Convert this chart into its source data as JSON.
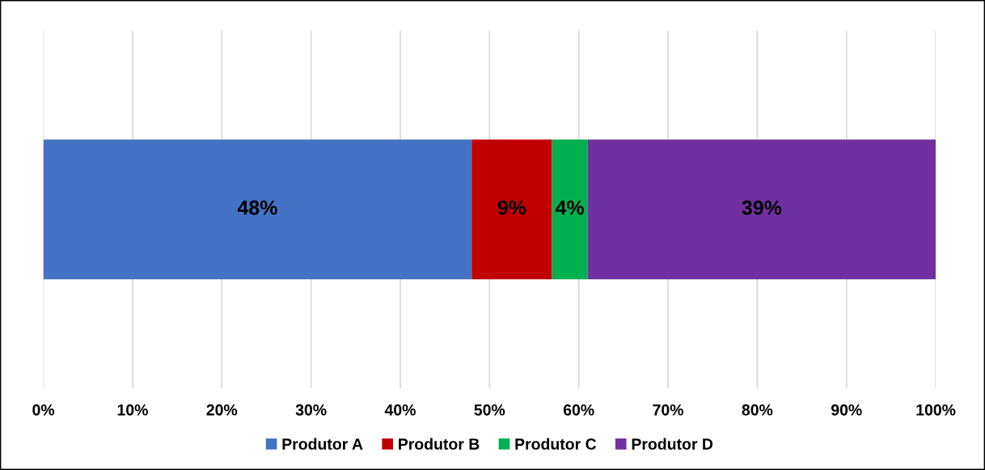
{
  "chart_data": {
    "type": "bar",
    "orientation": "horizontal",
    "stacked": true,
    "categories": [
      null
    ],
    "series": [
      {
        "name": "Produtor A",
        "color": "#4472c4",
        "values": [
          48
        ],
        "value_labels": [
          "48%"
        ]
      },
      {
        "name": "Produtor B",
        "color": "#c00000",
        "values": [
          9
        ],
        "value_labels": [
          "9%"
        ]
      },
      {
        "name": "Produtor C",
        "color": "#00b050",
        "values": [
          4
        ],
        "value_labels": [
          "4%"
        ]
      },
      {
        "name": "Produtor D",
        "color": "#7030a0",
        "values": [
          39
        ],
        "value_labels": [
          "39%"
        ]
      }
    ],
    "xlim": [
      0,
      100
    ],
    "xticks": [
      {
        "value": 0,
        "label": "0%"
      },
      {
        "value": 10,
        "label": "10%"
      },
      {
        "value": 20,
        "label": "20%"
      },
      {
        "value": 30,
        "label": "30%"
      },
      {
        "value": 40,
        "label": "40%"
      },
      {
        "value": 50,
        "label": "50%"
      },
      {
        "value": 60,
        "label": "60%"
      },
      {
        "value": 70,
        "label": "70%"
      },
      {
        "value": 80,
        "label": "80%"
      },
      {
        "value": 90,
        "label": "90%"
      },
      {
        "value": 100,
        "label": "100%"
      }
    ],
    "grid": "x",
    "legend": "bottom",
    "tick_labels": "x"
  }
}
